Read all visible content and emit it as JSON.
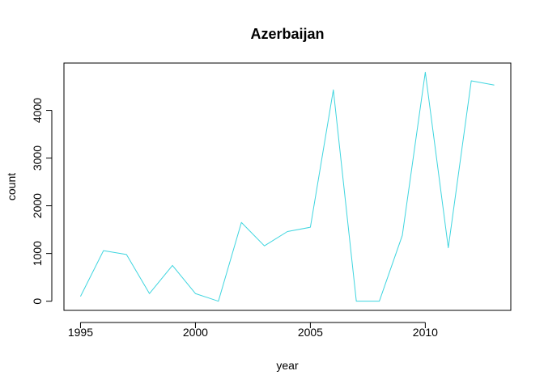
{
  "chart_data": {
    "type": "line",
    "title": "Azerbaijan",
    "xlabel": "year",
    "ylabel": "count",
    "x": [
      1995,
      1996,
      1997,
      1998,
      1999,
      2000,
      2001,
      2002,
      2003,
      2004,
      2005,
      2006,
      2007,
      2008,
      2009,
      2010,
      2011,
      2012,
      2013
    ],
    "series": [
      {
        "values": [
          100,
          1060,
          980,
          160,
          750,
          160,
          0,
          1650,
          1160,
          1460,
          1550,
          4430,
          0,
          0,
          1380,
          4800,
          1120,
          4620,
          4530
        ],
        "color": "#3fd5df"
      }
    ],
    "xlim": [
      1994.28,
      2013.72
    ],
    "ylim": [
      -192,
      4992
    ],
    "xticks": [
      1995,
      2000,
      2005,
      2010
    ],
    "yticks": [
      0,
      1000,
      2000,
      3000,
      4000
    ],
    "xtick_labels": [
      "1995",
      "2000",
      "2005",
      "2010"
    ],
    "ytick_labels": [
      "0",
      "1000",
      "2000",
      "3000",
      "4000"
    ],
    "grid": false,
    "legend": "none"
  }
}
